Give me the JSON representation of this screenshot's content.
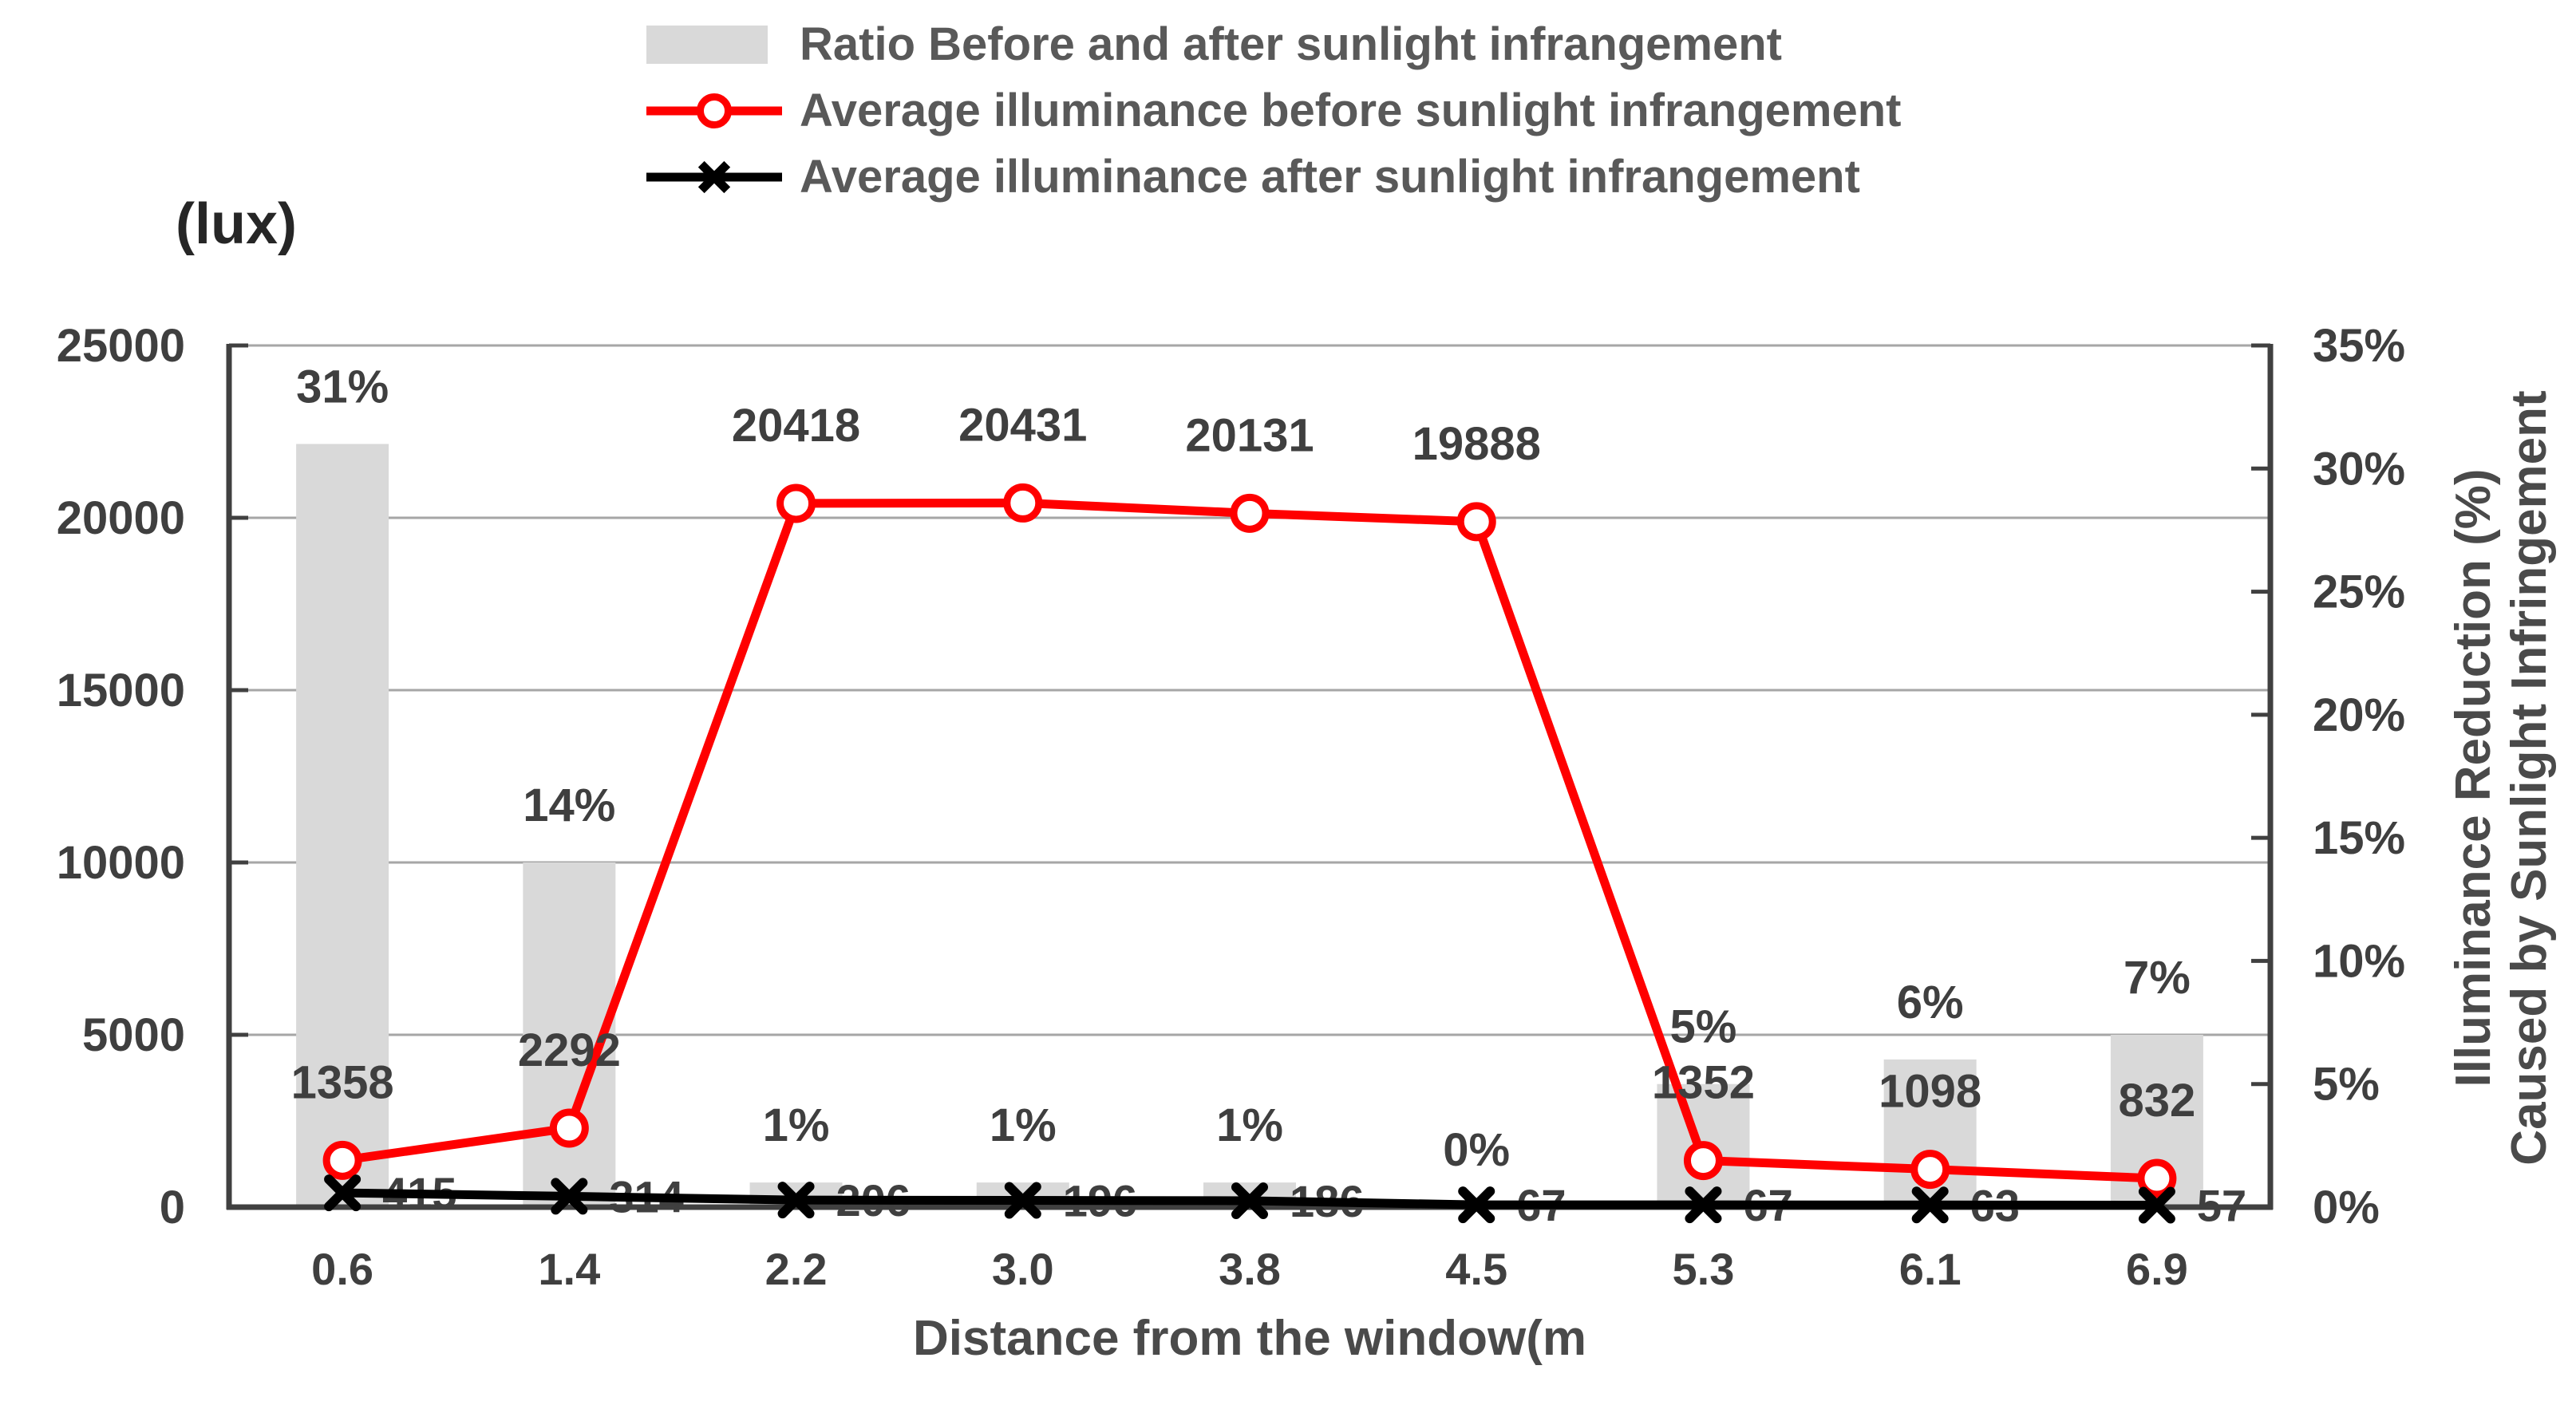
{
  "chart_data": {
    "type": "combo",
    "categories": [
      "0.6",
      "1.4",
      "2.2",
      "3.0",
      "3.8",
      "4.5",
      "5.3",
      "6.1",
      "6.9"
    ],
    "series": [
      {
        "name": "Ratio Before and after sunlight infrangement",
        "type": "bar",
        "axis": "right",
        "values": [
          31,
          14,
          1,
          1,
          1,
          0,
          5,
          6,
          7
        ],
        "labels": [
          "31%",
          "14%",
          "1%",
          "1%",
          "1%",
          "0%",
          "5%",
          "6%",
          "7%"
        ],
        "color": "#d9d9d9"
      },
      {
        "name": "Average illuminance before sunlight infrangement",
        "type": "line",
        "marker": "circle",
        "axis": "left",
        "values": [
          1358,
          2292,
          20418,
          20431,
          20131,
          19888,
          1352,
          1098,
          832
        ],
        "labels": [
          "1358",
          "2292",
          "20418",
          "20431",
          "20131",
          "19888",
          "1352",
          "1098",
          "832"
        ],
        "color": "#ff0000"
      },
      {
        "name": "Average illuminance after sunlight infrangement",
        "type": "line",
        "marker": "x",
        "axis": "left",
        "values": [
          415,
          314,
          206,
          196,
          186,
          67,
          67,
          63,
          57
        ],
        "labels": [
          "415",
          "314",
          "206",
          "196",
          "186",
          "67",
          "67",
          "63",
          "57"
        ],
        "color": "#000000"
      }
    ],
    "left_axis": {
      "unit_label": "(lux)",
      "min": 0,
      "max": 25000,
      "ticks": [
        "0",
        "5000",
        "10000",
        "15000",
        "20000",
        "25000"
      ]
    },
    "right_axis": {
      "min": 0,
      "max": 35,
      "ticks": [
        "0%",
        "5%",
        "10%",
        "15%",
        "20%",
        "25%",
        "30%",
        "35%"
      ],
      "title_lines": [
        "Illuminance Reduction (%)",
        "Caused by Sunlight Infringement"
      ]
    },
    "x_axis": {
      "title": "Distance from the window(m"
    },
    "style": {
      "gridline": "#a6a6a6",
      "axis": "#404040",
      "text": "#3f3f3f",
      "legend_text": "#595959",
      "background": "#ffffff"
    },
    "legend_position": "top",
    "grid": "horizontal"
  }
}
